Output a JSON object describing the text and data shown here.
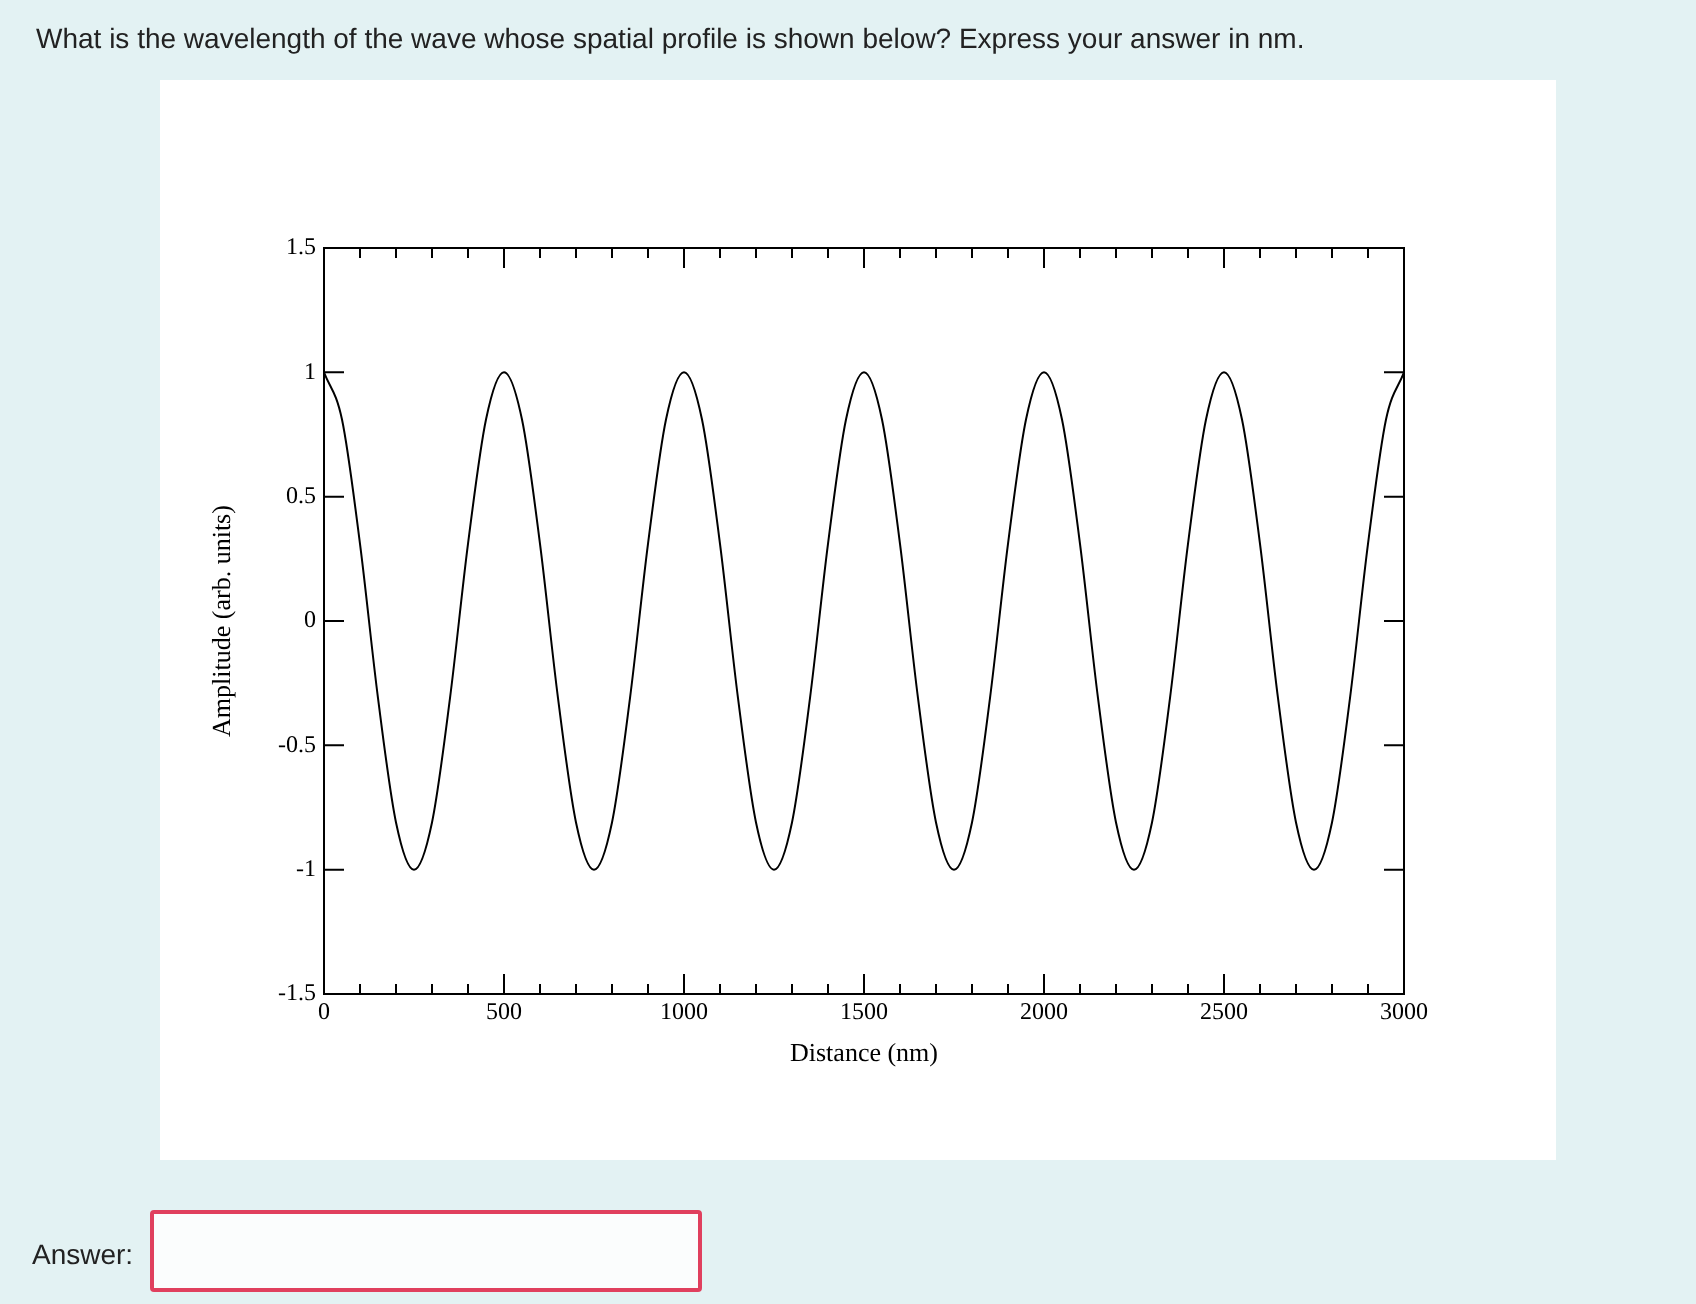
{
  "chart_data": {
    "type": "line",
    "title": "What is the wavelength of the wave whose spatial profile is shown below? Express your answer in nm.",
    "xlabel": "Distance (nm)",
    "ylabel": "Amplitude (arb. units)",
    "annotations": [
      "Answer:"
    ],
    "x": [
      0,
      50,
      100,
      150,
      200,
      250,
      300,
      350,
      400,
      450,
      500,
      550,
      600,
      650,
      700,
      750,
      800,
      850,
      900,
      950,
      1000,
      1050,
      1100,
      1150,
      1200,
      1250,
      1300,
      1350,
      1400,
      1450,
      1500,
      1550,
      1600,
      1650,
      1700,
      1750,
      1800,
      1850,
      1900,
      1950,
      2000,
      2050,
      2100,
      2150,
      2200,
      2250,
      2300,
      2350,
      2400,
      2450,
      2500,
      2550,
      2600,
      2650,
      2700,
      2750,
      2800,
      2850,
      2900,
      2950,
      3000
    ],
    "series": [
      {
        "color": "#000000",
        "values": [
          1,
          0.81,
          0.31,
          -0.31,
          -0.81,
          -1,
          -0.81,
          -0.31,
          0.31,
          0.81,
          1,
          0.81,
          0.31,
          -0.31,
          -0.81,
          -1,
          -0.81,
          -0.31,
          0.31,
          0.81,
          1,
          0.81,
          0.31,
          -0.31,
          -0.81,
          -1,
          -0.81,
          -0.31,
          0.31,
          0.81,
          1,
          0.81,
          0.31,
          -0.31,
          -0.81,
          -1,
          -0.81,
          -0.31,
          0.31,
          0.81,
          1,
          0.81,
          0.31,
          -0.31,
          -0.81,
          -1,
          -0.81,
          -0.31,
          0.31,
          0.81,
          1,
          0.81,
          0.31,
          -0.31,
          -0.81,
          -1,
          -0.81,
          -0.31,
          0.31,
          0.81,
          1
        ]
      }
    ],
    "xlim": [
      0,
      3000
    ],
    "xticks": [
      0,
      {
        "value": 100,
        "label": null
      },
      {
        "value": 200,
        "label": null
      },
      {
        "value": 300,
        "label": null
      },
      {
        "value": 400,
        "label": null
      },
      500,
      {
        "value": 600,
        "label": null
      },
      {
        "value": 700,
        "label": null
      },
      {
        "value": 800,
        "label": null
      },
      {
        "value": 900,
        "label": null
      },
      1000,
      {
        "value": 1100,
        "label": null
      },
      {
        "value": 1200,
        "label": null
      },
      {
        "value": 1300,
        "label": null
      },
      {
        "value": 1400,
        "label": null
      },
      1500,
      {
        "value": 1600,
        "label": null
      },
      {
        "value": 1700,
        "label": null
      },
      {
        "value": 1800,
        "label": null
      },
      {
        "value": 1900,
        "label": null
      },
      2000,
      {
        "value": 2100,
        "label": null
      },
      {
        "value": 2200,
        "label": null
      },
      {
        "value": 2300,
        "label": null
      },
      {
        "value": 2400,
        "label": null
      },
      2500,
      {
        "value": 2600,
        "label": null
      },
      {
        "value": 2700,
        "label": null
      },
      {
        "value": 2800,
        "label": null
      },
      {
        "value": 2900,
        "label": null
      },
      3000
    ],
    "ylim": [
      -1.5,
      1.5
    ],
    "yticks": [
      -1.5,
      -1,
      -0.5,
      0,
      0.5,
      1,
      1.5
    ],
    "grid": false,
    "legend": false,
    "marker": "none",
    "line_style": "solid"
  }
}
